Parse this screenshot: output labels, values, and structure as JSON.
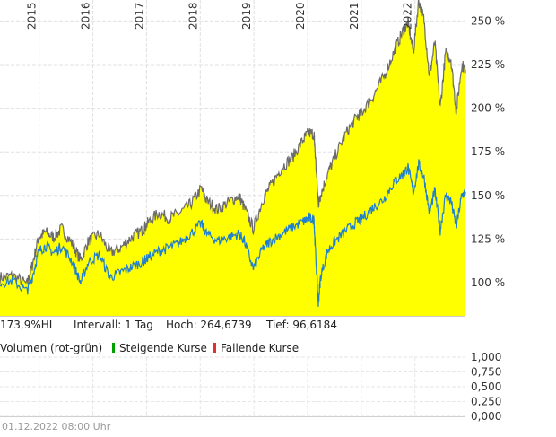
{
  "chart_data": {
    "type": "area",
    "x_ticks": [
      "2015",
      "2016",
      "2017",
      "2018",
      "2019",
      "2020",
      "2021",
      "2022"
    ],
    "y_ticks": [
      {
        "value": 100,
        "label": "100 %"
      },
      {
        "value": 125,
        "label": "125 %"
      },
      {
        "value": 150,
        "label": "150 %"
      },
      {
        "value": 175,
        "label": "175 %"
      },
      {
        "value": 200,
        "label": "200 %"
      },
      {
        "value": 225,
        "label": "225 %"
      },
      {
        "value": 250,
        "label": "250 %"
      }
    ],
    "xlim": [
      2014.25,
      2022.92
    ],
    "ylim": [
      81,
      262
    ],
    "grid": true,
    "series": [
      {
        "style": "area",
        "fill_color": "#ffff00",
        "line_color": "#6b6b6b",
        "x": [
          2014.25,
          2014.5,
          2014.75,
          2014.85,
          2014.97,
          2015.1,
          2015.25,
          2015.4,
          2015.6,
          2015.75,
          2015.9,
          2016.1,
          2016.3,
          2016.5,
          2016.7,
          2016.9,
          2017.0,
          2017.2,
          2017.4,
          2017.6,
          2017.8,
          2018.0,
          2018.1,
          2018.3,
          2018.5,
          2018.7,
          2018.8,
          2018.97,
          2019.15,
          2019.3,
          2019.5,
          2019.7,
          2019.9,
          2020.0,
          2020.1,
          2020.12,
          2020.18,
          2020.22,
          2020.35,
          2020.5,
          2020.7,
          2020.9,
          2021.0,
          2021.2,
          2021.4,
          2021.6,
          2021.75,
          2021.85,
          2021.95,
          2022.05,
          2022.15,
          2022.25,
          2022.35,
          2022.45,
          2022.55,
          2022.65,
          2022.75,
          2022.85,
          2022.92
        ],
        "y": [
          103,
          104,
          99,
          110,
          126,
          129,
          126,
          131,
          122,
          113,
          124,
          128,
          117,
          120,
          126,
          130,
          134,
          140,
          137,
          140,
          145,
          154,
          147,
          142,
          146,
          150,
          143,
          131,
          148,
          156,
          166,
          172,
          182,
          186,
          185,
          175,
          145,
          150,
          162,
          173,
          186,
          195,
          198,
          207,
          218,
          233,
          244,
          249,
          232,
          262,
          250,
          218,
          238,
          200,
          232,
          228,
          198,
          225,
          222
        ]
      },
      {
        "style": "line",
        "line_color": "#1f7fd0",
        "x": [
          2014.25,
          2014.5,
          2014.75,
          2014.85,
          2014.97,
          2015.1,
          2015.25,
          2015.4,
          2015.6,
          2015.75,
          2015.9,
          2016.1,
          2016.3,
          2016.5,
          2016.7,
          2016.9,
          2017.0,
          2017.2,
          2017.4,
          2017.6,
          2017.8,
          2018.0,
          2018.1,
          2018.3,
          2018.5,
          2018.7,
          2018.8,
          2018.97,
          2019.15,
          2019.3,
          2019.5,
          2019.7,
          2019.9,
          2020.0,
          2020.1,
          2020.12,
          2020.18,
          2020.22,
          2020.35,
          2020.5,
          2020.7,
          2020.9,
          2021.0,
          2021.2,
          2021.4,
          2021.6,
          2021.75,
          2021.85,
          2021.95,
          2022.05,
          2022.15,
          2022.25,
          2022.35,
          2022.45,
          2022.55,
          2022.65,
          2022.75,
          2022.85,
          2022.92
        ],
        "y": [
          100,
          101,
          95,
          103,
          118,
          121,
          117,
          121,
          112,
          100,
          112,
          116,
          103,
          106,
          109,
          112,
          114,
          118,
          120,
          123,
          128,
          134,
          128,
          124,
          126,
          128,
          124,
          108,
          120,
          124,
          128,
          132,
          135,
          137,
          136,
          122,
          88,
          103,
          118,
          124,
          130,
          135,
          137,
          143,
          148,
          158,
          162,
          166,
          152,
          168,
          160,
          140,
          153,
          130,
          150,
          147,
          132,
          150,
          152
        ]
      }
    ],
    "info": {
      "hl_label": "173,9%HL",
      "interval_label": "Intervall: 1 Tag",
      "high_label": "Hoch: 264,6739",
      "low_label": "Tief: 96,6184"
    },
    "volume_panel": {
      "title": "Volumen (rot-grün)",
      "legend_up": "Steigende Kurse",
      "legend_down": "Fallende Kurse",
      "up_color": "#00a000",
      "down_color": "#e03030",
      "y_ticks": [
        "1,000",
        "0,750",
        "0,500",
        "0,250",
        "0,000"
      ],
      "ylim": [
        0,
        1
      ]
    },
    "footer_text": "01.12.2022 08:00 Uhr"
  }
}
